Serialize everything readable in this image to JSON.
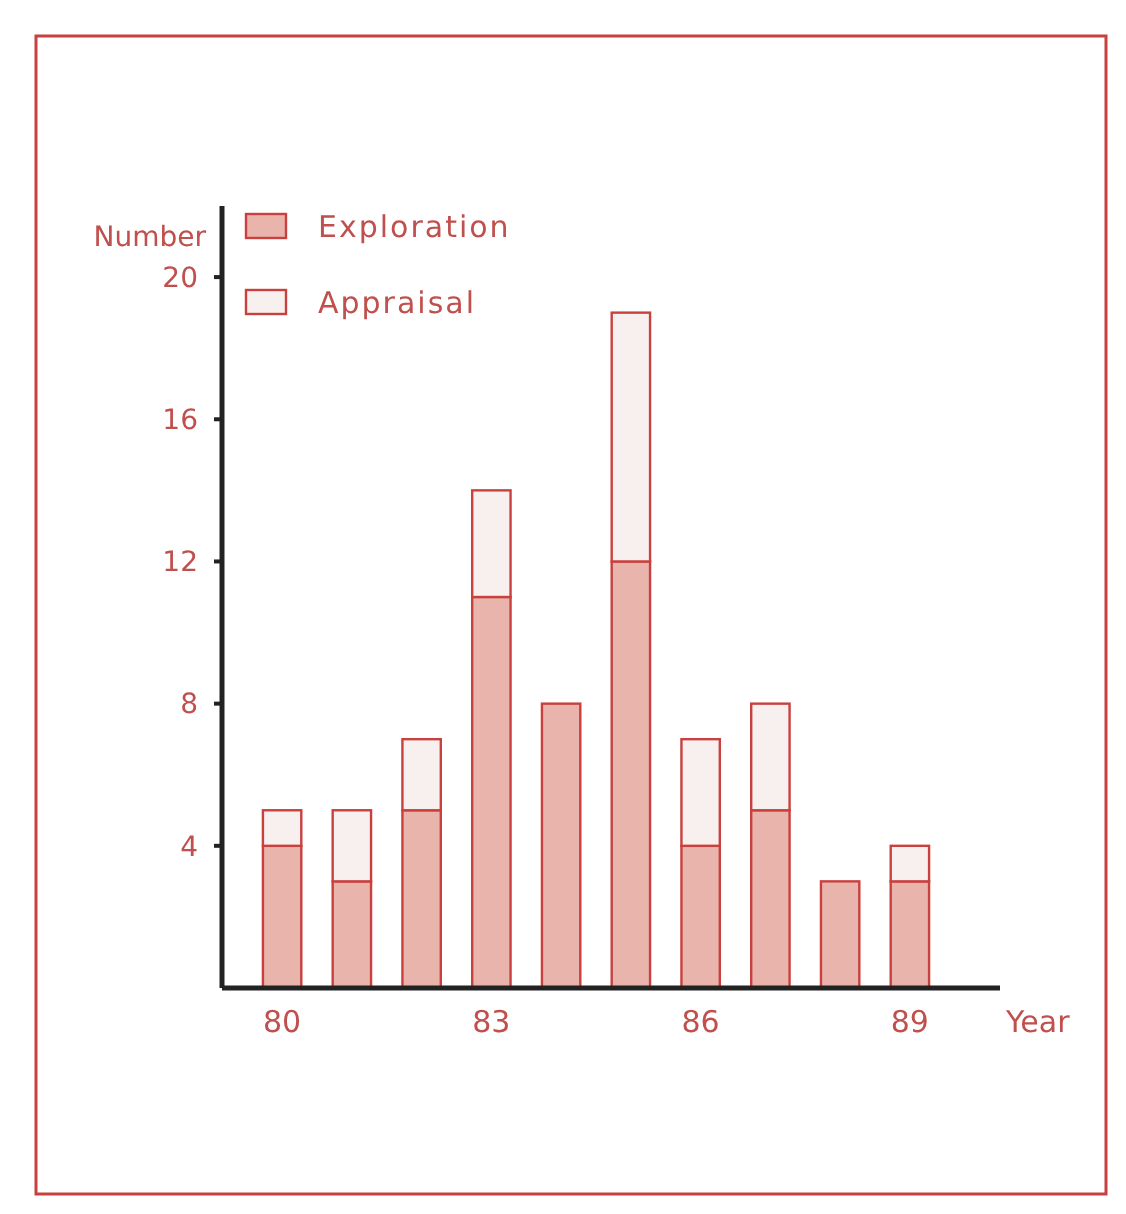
{
  "chart_data": {
    "type": "bar",
    "stacked": true,
    "xlabel": "Year",
    "ylabel": "Number",
    "categories": [
      "80",
      null,
      null,
      "83",
      null,
      null,
      "86",
      null,
      null,
      "89"
    ],
    "series": [
      {
        "name": "Exploration",
        "color": "#e8b4ac",
        "values": [
          4,
          3,
          5,
          11,
          8,
          12,
          4,
          5,
          3,
          3
        ]
      },
      {
        "name": "Appraisal",
        "color": "#f8f0ee",
        "values": [
          1,
          2,
          2,
          3,
          0,
          7,
          3,
          3,
          0,
          1
        ]
      }
    ],
    "ylim": [
      0,
      22
    ],
    "yticks": [
      4,
      8,
      12,
      16,
      20
    ],
    "grid": false,
    "legend": "top left"
  }
}
